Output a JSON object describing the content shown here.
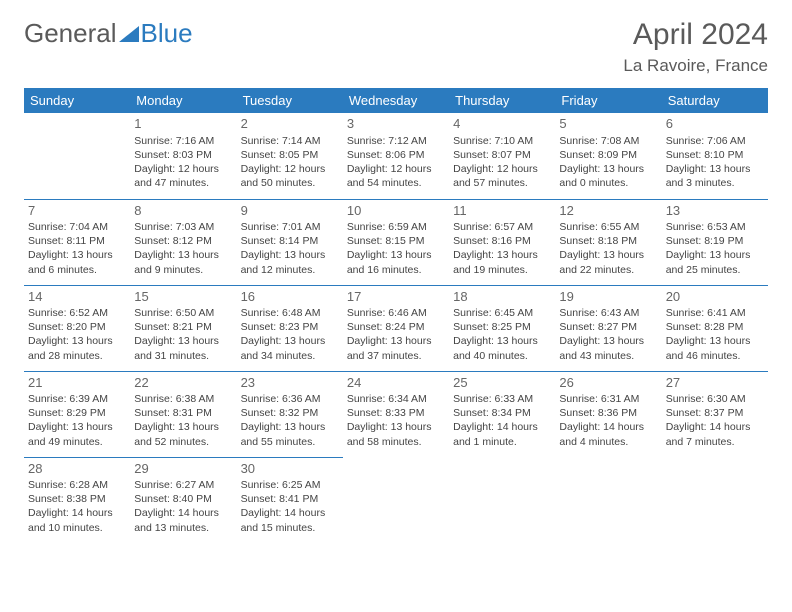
{
  "logo": {
    "text1": "General",
    "text2": "Blue"
  },
  "title": {
    "month": "April 2024",
    "location": "La Ravoire, France"
  },
  "style": {
    "header_bg": "#2b7bbf",
    "header_fg": "#ffffff",
    "border_color": "#2b7bbf",
    "page_bg": "#ffffff",
    "text_color": "#444444",
    "daynum_color": "#666666",
    "cell_fontsize": 10.5,
    "header_fontsize": 13
  },
  "columns": [
    "Sunday",
    "Monday",
    "Tuesday",
    "Wednesday",
    "Thursday",
    "Friday",
    "Saturday"
  ],
  "layout": {
    "first_day_col": 1,
    "days_in_month": 30
  },
  "days": {
    "1": {
      "sunrise": "7:16 AM",
      "sunset": "8:03 PM",
      "daylight": "12 hours and 47 minutes."
    },
    "2": {
      "sunrise": "7:14 AM",
      "sunset": "8:05 PM",
      "daylight": "12 hours and 50 minutes."
    },
    "3": {
      "sunrise": "7:12 AM",
      "sunset": "8:06 PM",
      "daylight": "12 hours and 54 minutes."
    },
    "4": {
      "sunrise": "7:10 AM",
      "sunset": "8:07 PM",
      "daylight": "12 hours and 57 minutes."
    },
    "5": {
      "sunrise": "7:08 AM",
      "sunset": "8:09 PM",
      "daylight": "13 hours and 0 minutes."
    },
    "6": {
      "sunrise": "7:06 AM",
      "sunset": "8:10 PM",
      "daylight": "13 hours and 3 minutes."
    },
    "7": {
      "sunrise": "7:04 AM",
      "sunset": "8:11 PM",
      "daylight": "13 hours and 6 minutes."
    },
    "8": {
      "sunrise": "7:03 AM",
      "sunset": "8:12 PM",
      "daylight": "13 hours and 9 minutes."
    },
    "9": {
      "sunrise": "7:01 AM",
      "sunset": "8:14 PM",
      "daylight": "13 hours and 12 minutes."
    },
    "10": {
      "sunrise": "6:59 AM",
      "sunset": "8:15 PM",
      "daylight": "13 hours and 16 minutes."
    },
    "11": {
      "sunrise": "6:57 AM",
      "sunset": "8:16 PM",
      "daylight": "13 hours and 19 minutes."
    },
    "12": {
      "sunrise": "6:55 AM",
      "sunset": "8:18 PM",
      "daylight": "13 hours and 22 minutes."
    },
    "13": {
      "sunrise": "6:53 AM",
      "sunset": "8:19 PM",
      "daylight": "13 hours and 25 minutes."
    },
    "14": {
      "sunrise": "6:52 AM",
      "sunset": "8:20 PM",
      "daylight": "13 hours and 28 minutes."
    },
    "15": {
      "sunrise": "6:50 AM",
      "sunset": "8:21 PM",
      "daylight": "13 hours and 31 minutes."
    },
    "16": {
      "sunrise": "6:48 AM",
      "sunset": "8:23 PM",
      "daylight": "13 hours and 34 minutes."
    },
    "17": {
      "sunrise": "6:46 AM",
      "sunset": "8:24 PM",
      "daylight": "13 hours and 37 minutes."
    },
    "18": {
      "sunrise": "6:45 AM",
      "sunset": "8:25 PM",
      "daylight": "13 hours and 40 minutes."
    },
    "19": {
      "sunrise": "6:43 AM",
      "sunset": "8:27 PM",
      "daylight": "13 hours and 43 minutes."
    },
    "20": {
      "sunrise": "6:41 AM",
      "sunset": "8:28 PM",
      "daylight": "13 hours and 46 minutes."
    },
    "21": {
      "sunrise": "6:39 AM",
      "sunset": "8:29 PM",
      "daylight": "13 hours and 49 minutes."
    },
    "22": {
      "sunrise": "6:38 AM",
      "sunset": "8:31 PM",
      "daylight": "13 hours and 52 minutes."
    },
    "23": {
      "sunrise": "6:36 AM",
      "sunset": "8:32 PM",
      "daylight": "13 hours and 55 minutes."
    },
    "24": {
      "sunrise": "6:34 AM",
      "sunset": "8:33 PM",
      "daylight": "13 hours and 58 minutes."
    },
    "25": {
      "sunrise": "6:33 AM",
      "sunset": "8:34 PM",
      "daylight": "14 hours and 1 minute."
    },
    "26": {
      "sunrise": "6:31 AM",
      "sunset": "8:36 PM",
      "daylight": "14 hours and 4 minutes."
    },
    "27": {
      "sunrise": "6:30 AM",
      "sunset": "8:37 PM",
      "daylight": "14 hours and 7 minutes."
    },
    "28": {
      "sunrise": "6:28 AM",
      "sunset": "8:38 PM",
      "daylight": "14 hours and 10 minutes."
    },
    "29": {
      "sunrise": "6:27 AM",
      "sunset": "8:40 PM",
      "daylight": "14 hours and 13 minutes."
    },
    "30": {
      "sunrise": "6:25 AM",
      "sunset": "8:41 PM",
      "daylight": "14 hours and 15 minutes."
    }
  },
  "labels": {
    "sunrise": "Sunrise:",
    "sunset": "Sunset:",
    "daylight": "Daylight:"
  }
}
